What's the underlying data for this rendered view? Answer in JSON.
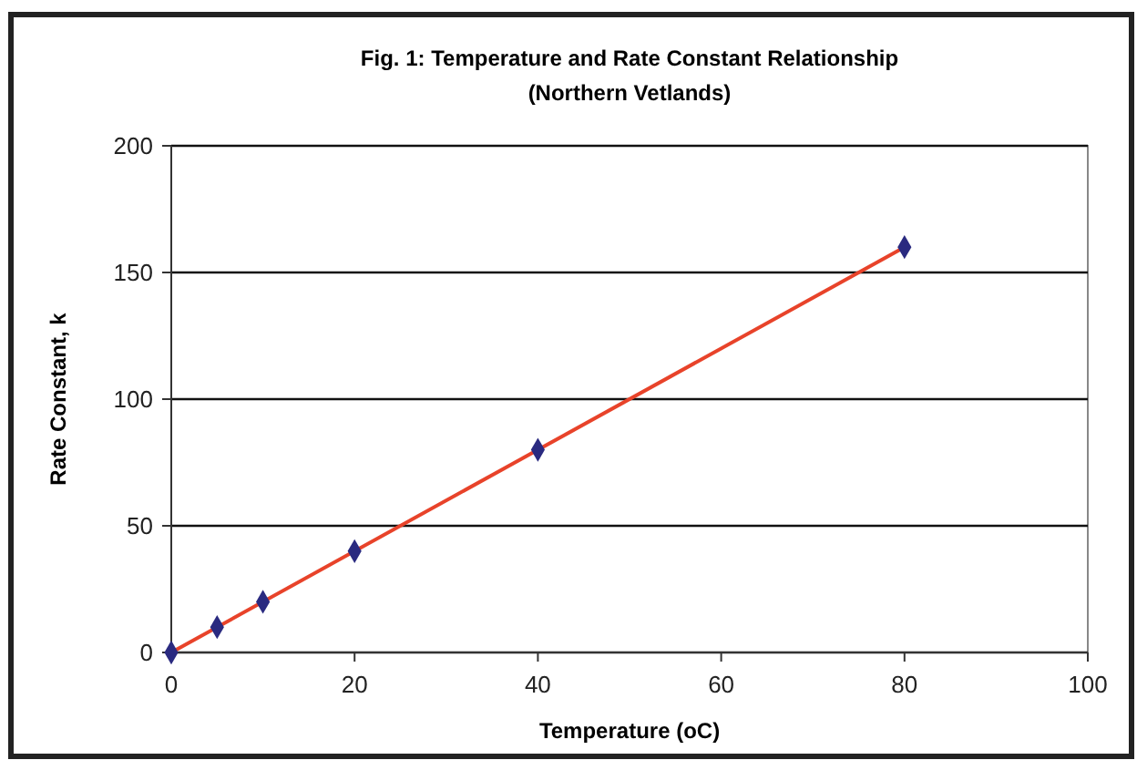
{
  "chart_data": {
    "type": "scatter",
    "title": "Fig. 1: Temperature and Rate Constant Relationship",
    "subtitle": "(Northern Vetlands)",
    "xlabel": "Temperature (oC)",
    "ylabel": "Rate Constant, k",
    "xlim": [
      0,
      100
    ],
    "xticks": [
      0,
      20,
      40,
      60,
      80,
      100
    ],
    "ylim": [
      0,
      200
    ],
    "yticks": [
      0,
      50,
      100,
      150,
      200
    ],
    "grid": "y",
    "series": [
      {
        "type": "line",
        "color": "#e8432a",
        "x": [
          0,
          80
        ],
        "values": [
          0,
          160
        ],
        "marker": "none",
        "line_style": "solid"
      },
      {
        "color": "#2a2a80",
        "x": [
          0,
          5,
          10,
          20,
          40,
          80
        ],
        "values": [
          0,
          10,
          20,
          40,
          80,
          160
        ],
        "marker": "diamond"
      }
    ]
  }
}
